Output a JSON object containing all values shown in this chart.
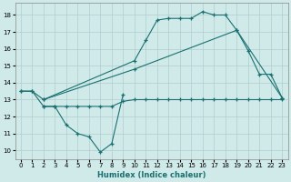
{
  "xlabel": "Humidex (Indice chaleur)",
  "bg_color": "#d0eaea",
  "grid_color": "#b0cccc",
  "line_color": "#1a7070",
  "xlim": [
    -0.5,
    23.5
  ],
  "ylim": [
    9.5,
    18.7
  ],
  "yticks": [
    10,
    11,
    12,
    13,
    14,
    15,
    16,
    17,
    18
  ],
  "xticks": [
    0,
    1,
    2,
    3,
    4,
    5,
    6,
    7,
    8,
    9,
    10,
    11,
    12,
    13,
    14,
    15,
    16,
    17,
    18,
    19,
    20,
    21,
    22,
    23
  ],
  "curve_zigzag_x": [
    0,
    1,
    2,
    3,
    4,
    5,
    6,
    7,
    8,
    9
  ],
  "curve_zigzag_y": [
    13.5,
    13.5,
    12.6,
    12.6,
    11.5,
    11.0,
    10.8,
    9.9,
    10.4,
    13.3
  ],
  "curve_flat_x": [
    2,
    3,
    4,
    5,
    6,
    7,
    8,
    9,
    10,
    11,
    12,
    13,
    14,
    15,
    16,
    17,
    18,
    19,
    20,
    21,
    22,
    23
  ],
  "curve_flat_y": [
    12.6,
    12.6,
    12.6,
    12.6,
    12.6,
    12.6,
    12.6,
    12.9,
    13.0,
    13.0,
    13.0,
    13.0,
    13.0,
    13.0,
    13.0,
    13.0,
    13.0,
    13.0,
    13.0,
    13.0,
    13.0,
    13.0
  ],
  "curve_bell_x": [
    0,
    1,
    2,
    10,
    11,
    12,
    13,
    14,
    15,
    16,
    17,
    18,
    19,
    20,
    21,
    22,
    23
  ],
  "curve_bell_y": [
    13.5,
    13.5,
    13.0,
    15.3,
    16.5,
    17.7,
    17.8,
    17.8,
    17.8,
    18.2,
    18.0,
    18.0,
    17.1,
    15.9,
    14.5,
    14.5,
    13.1
  ],
  "curve_trend_x": [
    2,
    10,
    19,
    23
  ],
  "curve_trend_y": [
    13.0,
    14.8,
    17.1,
    13.1
  ]
}
